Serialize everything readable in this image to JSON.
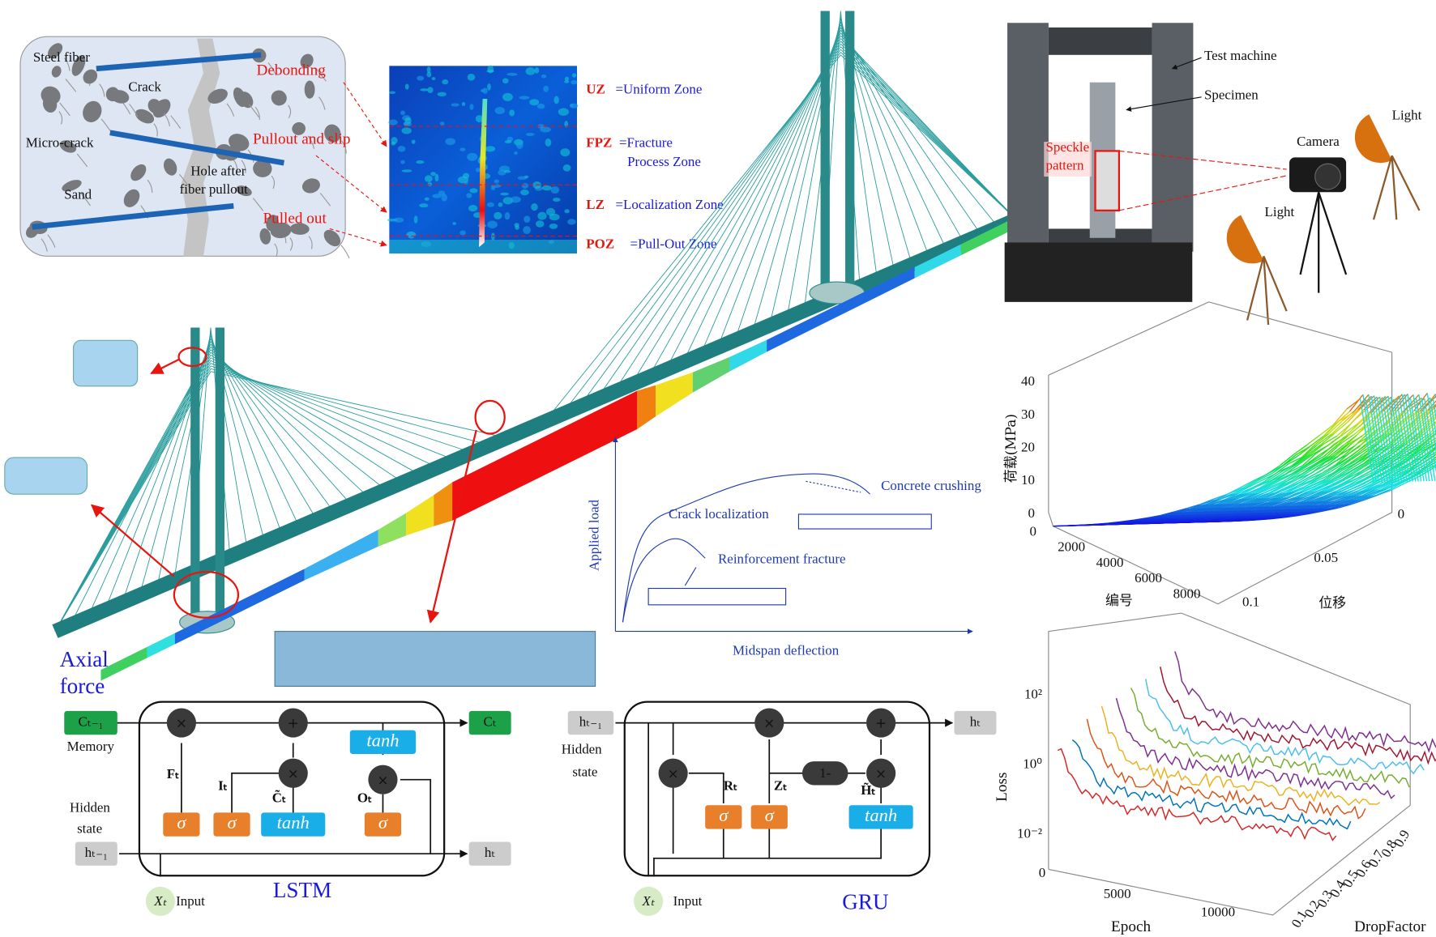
{
  "fiber_panel": {
    "steel_fiber": "Steel fiber",
    "crack": "Crack",
    "micro_crack": "Micro-crack",
    "sand": "Sand",
    "hole": [
      "Hole after",
      "fiber pullout"
    ],
    "debonding": "Debonding",
    "pullout_slip": "Pullout and slip",
    "pulled_out": "Pulled out"
  },
  "zones": [
    {
      "code": "UZ",
      "text": "=Uniform Zone"
    },
    {
      "code": "FPZ",
      "text": "=Fracture",
      "text2": "Process Zone"
    },
    {
      "code": "LZ",
      "text": "=Localization Zone"
    },
    {
      "code": "POZ",
      "text": "=Pull-Out Zone"
    }
  ],
  "bridge": {
    "axial_force": [
      "Axial",
      "force"
    ]
  },
  "load_curve": {
    "ylabel": "Applied load",
    "xlabel": "Midspan deflection",
    "crack_localization": "Crack localization",
    "reinforcement_fracture": "Reinforcement fracture",
    "concrete_crushing": "Concrete crushing"
  },
  "test_setup": {
    "machine": "Test machine",
    "specimen": "Specimen",
    "speckle": [
      "Speckle",
      "pattern"
    ],
    "camera": "Camera",
    "light_1": "Light",
    "light_2": "Light"
  },
  "surface_chart": {
    "zlabel": "荷载(MPa)",
    "xlabel": "编号",
    "ylabel": "位移",
    "zticks": [
      0,
      10,
      20,
      30,
      40
    ],
    "xticks": [
      0,
      2000,
      4000,
      6000,
      8000
    ],
    "yticks": [
      0,
      0.05,
      0.1
    ]
  },
  "loss_chart": {
    "ylabel": "Loss",
    "xlabel": "Epoch",
    "zlabel": "DropFactor",
    "yticks": [
      {
        "value": 100,
        "label": "10²"
      },
      {
        "value": 1,
        "label": "10⁰"
      },
      {
        "value": 0.01,
        "label": "10⁻²"
      }
    ],
    "xticks": [
      0,
      5000,
      10000
    ],
    "zticks": [
      0.1,
      0.2,
      0.3,
      0.4,
      0.5,
      0.6,
      0.7,
      0.8,
      0.9
    ]
  },
  "lstm": {
    "title": "LSTM",
    "memory": "Memory",
    "hidden_state": [
      "Hidden",
      "state"
    ],
    "input": "Input",
    "c_prev": "Cₜ₋₁",
    "c_t": "Cₜ",
    "h_prev": "hₜ₋₁",
    "h_t": "hₜ",
    "x_t": "Xₜ",
    "ft": "Fₜ",
    "it": "Iₜ",
    "ct_tilde": "C̃ₜ",
    "ot": "Oₜ",
    "sigma": "σ",
    "tanh": "tanh"
  },
  "gru": {
    "title": "GRU",
    "hidden_state": [
      "Hidden",
      "state"
    ],
    "input": "Input",
    "h_prev": "hₜ₋₁",
    "h_t": "hₜ",
    "x_t": "Xₜ",
    "rt": "Rₜ",
    "zt": "Zₜ",
    "ht_tilde": "H̃ₜ",
    "one_minus": "1-",
    "sigma": "σ",
    "tanh": "tanh"
  }
}
